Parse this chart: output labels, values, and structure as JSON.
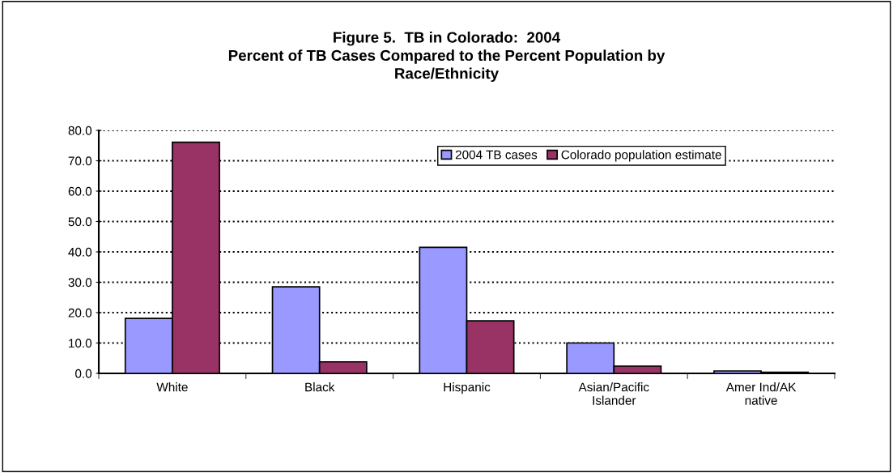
{
  "chart_data": {
    "type": "bar",
    "title": "Figure 5.  TB in Colorado:  2004\nPercent of TB Cases Compared to the Percent Population by\nRace/Ethnicity",
    "categories": [
      "White",
      "Black",
      "Hispanic",
      "Asian/Pacific\nIslander",
      "Amer Ind/AK\nnative"
    ],
    "series": [
      {
        "name": "2004 TB cases",
        "color": "#9999ff",
        "values": [
          18.1,
          28.5,
          41.5,
          10.0,
          0.8
        ]
      },
      {
        "name": "Colorado population estimate",
        "color": "#993366",
        "values": [
          76.1,
          3.8,
          17.3,
          2.4,
          0.4
        ]
      }
    ],
    "ylim": [
      0,
      80
    ],
    "yticks": [
      {
        "value": 0,
        "label": "0.0"
      },
      {
        "value": 10,
        "label": "10.0"
      },
      {
        "value": 20,
        "label": "20.0"
      },
      {
        "value": 30,
        "label": "30.0"
      },
      {
        "value": 40,
        "label": "40.0"
      },
      {
        "value": 50,
        "label": "50.0"
      },
      {
        "value": 60,
        "label": "60.0"
      },
      {
        "value": 70,
        "label": "70.0"
      },
      {
        "value": 80,
        "label": "80.0"
      }
    ],
    "grid": "y",
    "line_style": "dotted",
    "legend": "top right"
  }
}
